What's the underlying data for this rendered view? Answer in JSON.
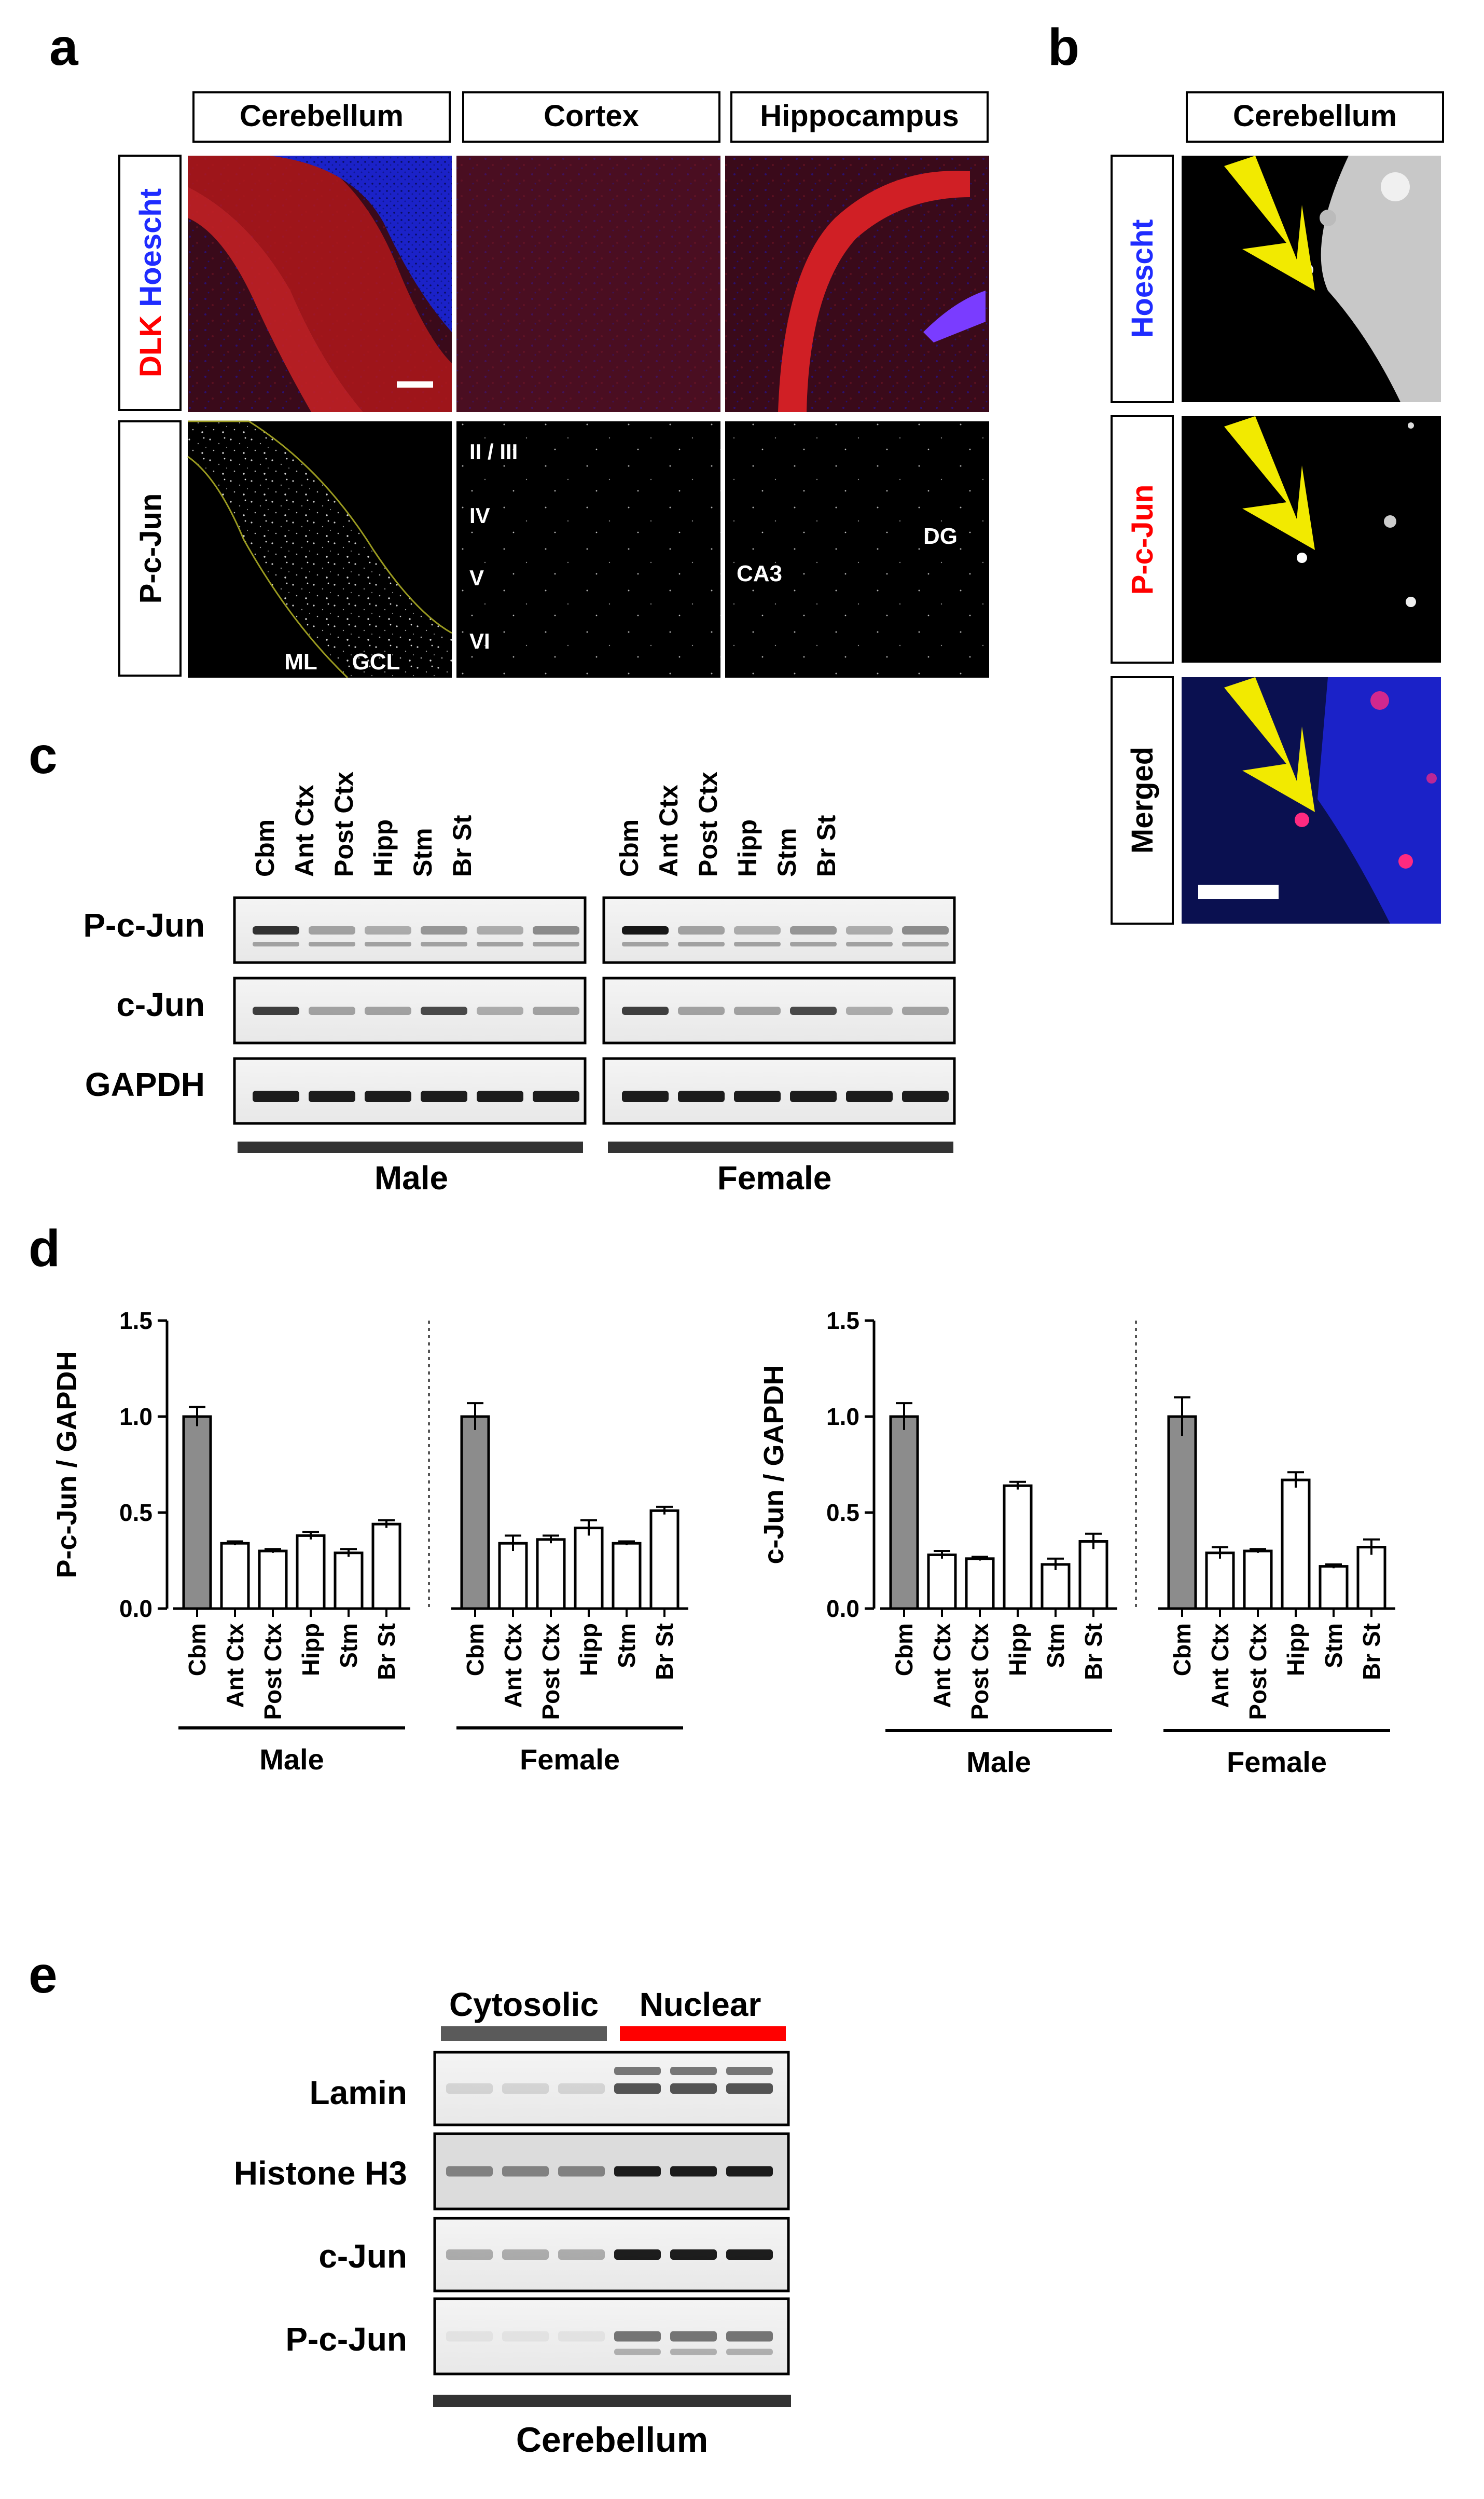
{
  "panel_letters": {
    "a": "a",
    "b": "b",
    "c": "c",
    "d": "d",
    "e": "e"
  },
  "panel_a": {
    "columns": [
      "Cerebellum",
      "Cortex",
      "Hippocampus"
    ],
    "row1_label": {
      "part1": "DLK",
      "part2": " Hoescht"
    },
    "row2_label": "P-c-Jun",
    "cerebellum_regions": [
      "ML",
      "GCL"
    ],
    "cortex_layers": [
      "II / III",
      "IV",
      "V",
      "VI"
    ],
    "hippocampus_regions": [
      "CA3",
      "DG"
    ]
  },
  "panel_b": {
    "title": "Cerebellum",
    "rows": [
      "Hoescht",
      "P-c-Jun",
      "Merged"
    ]
  },
  "panel_c": {
    "lanes": [
      "Cbm",
      "Ant Ctx",
      "Post Ctx",
      "Hipp",
      "Stm",
      "Br St"
    ],
    "rows": [
      "P-c-Jun",
      "c-Jun",
      "GAPDH"
    ],
    "groups": [
      "Male",
      "Female"
    ]
  },
  "chart_data": [
    {
      "type": "bar",
      "title": "",
      "ylabel": "P-c-Jun / GAPDH",
      "xlabel": "",
      "ylim": [
        0,
        1.5
      ],
      "yticks": [
        "0.0",
        "0.5",
        "1.0",
        "1.5"
      ],
      "categories": [
        "Cbm",
        "Ant Ctx",
        "Post Ctx",
        "Hipp",
        "Stm",
        "Br St"
      ],
      "groups": [
        "Male",
        "Female"
      ],
      "series": [
        {
          "name": "Male",
          "values": [
            1.0,
            0.34,
            0.3,
            0.38,
            0.29,
            0.44
          ],
          "errors": [
            0.05,
            0.01,
            0.01,
            0.02,
            0.02,
            0.02
          ]
        },
        {
          "name": "Female",
          "values": [
            1.0,
            0.34,
            0.36,
            0.42,
            0.34,
            0.51
          ],
          "errors": [
            0.07,
            0.04,
            0.02,
            0.04,
            0.01,
            0.02
          ]
        }
      ]
    },
    {
      "type": "bar",
      "title": "",
      "ylabel": "c-Jun / GAPDH",
      "xlabel": "",
      "ylim": [
        0,
        1.5
      ],
      "yticks": [
        "0.0",
        "0.5",
        "1.0",
        "1.5"
      ],
      "categories": [
        "Cbm",
        "Ant Ctx",
        "Post Ctx",
        "Hipp",
        "Stm",
        "Br St"
      ],
      "groups": [
        "Male",
        "Female"
      ],
      "series": [
        {
          "name": "Male",
          "values": [
            1.0,
            0.28,
            0.26,
            0.64,
            0.23,
            0.35
          ],
          "errors": [
            0.07,
            0.02,
            0.01,
            0.02,
            0.03,
            0.04
          ]
        },
        {
          "name": "Female",
          "values": [
            1.0,
            0.29,
            0.3,
            0.67,
            0.22,
            0.32
          ],
          "errors": [
            0.1,
            0.03,
            0.01,
            0.04,
            0.01,
            0.04
          ]
        }
      ]
    }
  ],
  "panel_e": {
    "groups": [
      "Cytosolic",
      "Nuclear"
    ],
    "rows": [
      "Lamin",
      "Histone H3",
      "c-Jun",
      "P-c-Jun"
    ],
    "footer": "Cerebellum",
    "colors": {
      "cytosolic": "#5a5a5a",
      "nuclear": "#ff0000"
    }
  }
}
